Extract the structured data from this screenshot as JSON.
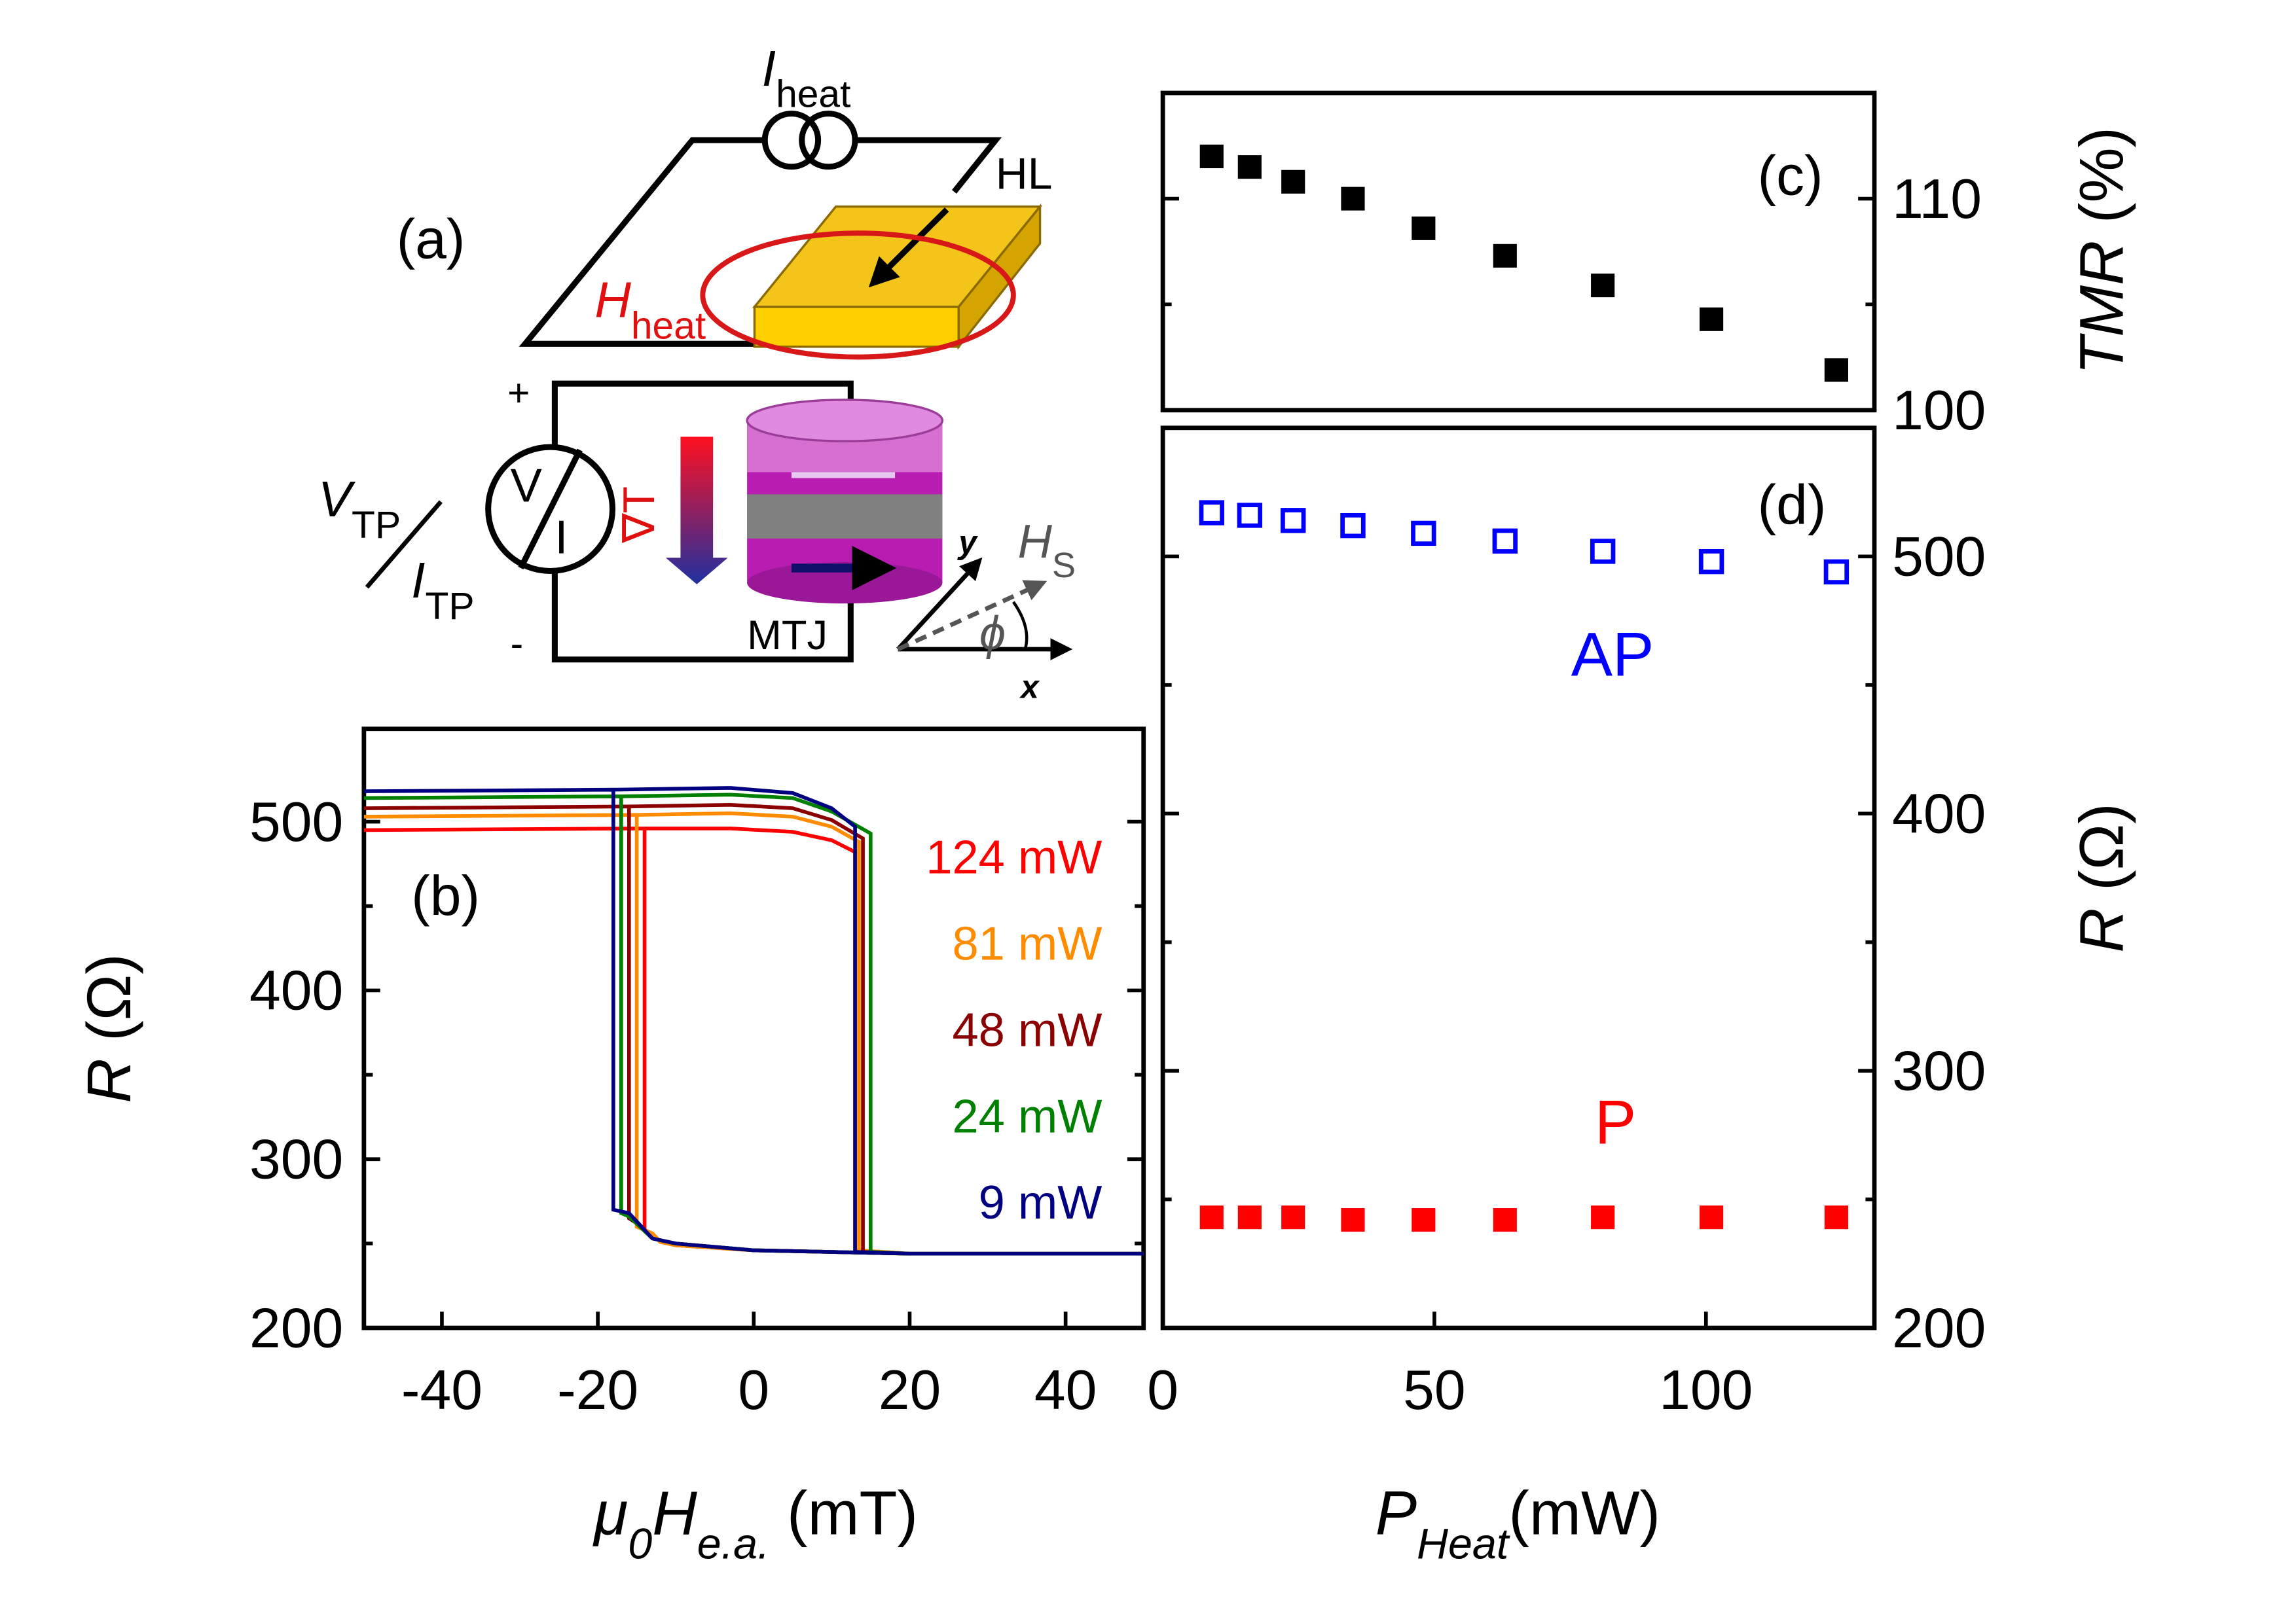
{
  "chart_data": [
    {
      "type": "line",
      "panel_label": "(b)",
      "xlim": [
        -50,
        50
      ],
      "ylim": [
        200,
        555
      ],
      "xticks": [
        -40,
        -20,
        0,
        20,
        40
      ],
      "yticks": [
        200,
        300,
        400,
        500
      ],
      "yminor": [
        250,
        350,
        450
      ],
      "ytick_side": "left",
      "x_label": [
        {
          "text": "μ",
          "italic": true
        },
        {
          "text": "0",
          "italic": true,
          "sub": true
        },
        {
          "text": "H",
          "italic": true
        },
        {
          "text": "e.a.",
          "italic": true,
          "sub": true
        },
        {
          "text": " (mT)"
        }
      ],
      "y_label": [
        {
          "text": "R",
          "italic": true
        },
        {
          "text": " (Ω)"
        }
      ],
      "series": [
        {
          "name": "124 mW",
          "color": "#ff0000",
          "x": [
            -50,
            -14,
            -3,
            5,
            10,
            13,
            13,
            20,
            50,
            50,
            20,
            0,
            -10,
            -12,
            -13,
            -14,
            -14,
            -50
          ],
          "values": [
            495,
            496,
            496,
            494,
            489,
            482,
            246,
            244,
            244,
            244,
            244,
            246,
            249,
            251,
            256,
            258,
            496,
            495
          ]
        },
        {
          "name": "81 mW",
          "color": "#ff8c00",
          "x": [
            -50,
            -15,
            -3,
            5,
            10,
            13.5,
            13.5,
            20,
            50,
            50,
            20,
            0,
            -10,
            -12,
            -13,
            -15,
            -15,
            -50
          ],
          "values": [
            503,
            504,
            505,
            503,
            497,
            488,
            246,
            244,
            244,
            244,
            244,
            246,
            249,
            251,
            256,
            260,
            504,
            503
          ]
        },
        {
          "name": "48 mW",
          "color": "#8b0000",
          "x": [
            -50,
            -16,
            -3,
            5,
            10,
            14,
            14,
            20,
            50,
            50,
            20,
            0,
            -10,
            -13,
            -15,
            -16,
            -16,
            -50
          ],
          "values": [
            508,
            509,
            510,
            508,
            501,
            490,
            245,
            244,
            244,
            244,
            244,
            246,
            250,
            253,
            262,
            265,
            509,
            508
          ]
        },
        {
          "name": "24 mW",
          "color": "#008000",
          "x": [
            -50,
            -17,
            -3,
            5,
            10,
            15,
            15,
            20,
            50,
            50,
            20,
            0,
            -10,
            -13,
            -16,
            -17,
            -17,
            -50
          ],
          "values": [
            514,
            515,
            516,
            514,
            506,
            493,
            245,
            244,
            244,
            244,
            244,
            246,
            250,
            253,
            266,
            268,
            515,
            514
          ]
        },
        {
          "name": "9 mW",
          "color": "#000080",
          "x": [
            -50,
            -18,
            -3,
            5,
            10,
            13,
            13,
            20,
            50,
            50,
            20,
            0,
            -10,
            -13,
            -16,
            -18,
            -18,
            -50
          ],
          "values": [
            518,
            519,
            520,
            517,
            508,
            497,
            245,
            244,
            244,
            244,
            244,
            246,
            250,
            253,
            268,
            270,
            519,
            518
          ]
        }
      ]
    },
    {
      "type": "scatter",
      "panel_label": "(c)",
      "xlim": [
        0,
        131
      ],
      "ylim": [
        100,
        115
      ],
      "yticks": [
        100,
        110
      ],
      "yminor": [
        105
      ],
      "ytick_side": "right",
      "y_label": [
        {
          "text": "TMR",
          "italic": true
        },
        {
          "text": " (%)"
        }
      ],
      "x": [
        9,
        16,
        24,
        35,
        48,
        63,
        81,
        101,
        124
      ],
      "values": [
        112,
        111.5,
        110.8,
        110,
        108.6,
        107.3,
        105.9,
        104.3,
        101.9
      ],
      "color": "#000000",
      "marker": "filled-square"
    },
    {
      "type": "scatter",
      "panel_label": "(d)",
      "xlim": [
        0,
        131
      ],
      "ylim": [
        200,
        550
      ],
      "xticks": [
        0,
        50,
        100
      ],
      "yticks": [
        200,
        300,
        400,
        500
      ],
      "yminor": [
        250,
        350,
        450
      ],
      "ytick_side": "right",
      "x_label": [
        {
          "text": "P",
          "italic": true
        },
        {
          "text": "Heat",
          "italic": true,
          "sub": true
        },
        {
          "text": "(mW)"
        }
      ],
      "y_label": [
        {
          "text": "R",
          "italic": true
        },
        {
          "text": " (Ω)"
        }
      ],
      "x": [
        9,
        16,
        24,
        35,
        48,
        63,
        81,
        101,
        124
      ],
      "series": [
        {
          "name": "AP",
          "color": "#0000ff",
          "marker": "open-square",
          "values": [
            517,
            516,
            514,
            512,
            509,
            506,
            502,
            498,
            494
          ]
        },
        {
          "name": "P",
          "color": "#ff0000",
          "marker": "filled-square",
          "values": [
            243,
            243,
            243,
            242,
            242,
            242,
            243,
            243,
            243
          ]
        }
      ]
    }
  ],
  "schematic": {
    "panel_label": "(a)",
    "heater_current": {
      "symbol": "I",
      "sub": "heat"
    },
    "heater_line": "HL",
    "heater_field": {
      "symbol": "H",
      "sub": "heat"
    },
    "plus": "+",
    "minus": "-",
    "thermovoltage": {
      "symbol": "V",
      "sub": "TP"
    },
    "thermocurrent": {
      "symbol": "I",
      "sub": "TP"
    },
    "meter_v": "V",
    "meter_i": "I",
    "gradient": "∇T",
    "junction": "MTJ",
    "axis_y": "y",
    "axis_x": "x",
    "sensor_field": {
      "symbol": "H",
      "sub": "S"
    },
    "angle": "ϕ"
  }
}
